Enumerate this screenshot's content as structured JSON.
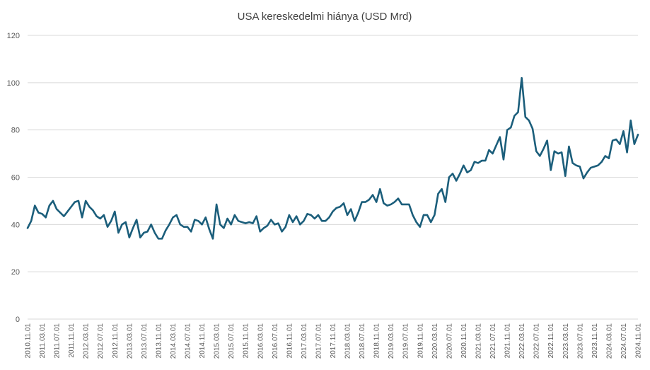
{
  "chart_data": {
    "type": "line",
    "title": "USA kereskedelmi hiánya (USD Mrd)",
    "xlabel": "",
    "ylabel": "",
    "ylim": [
      0,
      120
    ],
    "yticks": [
      0,
      20,
      40,
      60,
      80,
      100,
      120
    ],
    "grid": "horizontal",
    "legend": "none",
    "colors": {
      "line": "#1b5e7b",
      "grid": "#d9d9d9",
      "text": "#595959"
    },
    "x_tick_labels": [
      "2010.11.01",
      "2011.03.01",
      "2011.07.01",
      "2011.11.01",
      "2012.03.01",
      "2012.07.01",
      "2012.11.01",
      "2013.03.01",
      "2013.07.01",
      "2013.11.01",
      "2014.03.01",
      "2014.07.01",
      "2014.11.01",
      "2015.03.01",
      "2015.07.01",
      "2015.11.01",
      "2016.03.01",
      "2016.07.01",
      "2016.11.01",
      "2017.03.01",
      "2017.07.01",
      "2017.11.01",
      "2018.03.01",
      "2018.07.01",
      "2018.11.01",
      "2019.03.01",
      "2019.07.01",
      "2019.11.01",
      "2020.03.01",
      "2020.07.01",
      "2020.11.01",
      "2021.03.01",
      "2021.07.01",
      "2021.11.01",
      "2022.03.01",
      "2022.07.01",
      "2022.11.01",
      "2023.03.01",
      "2023.07.01",
      "2023.11.01",
      "2024.03.01",
      "2024.07.01",
      "2024.11.01"
    ],
    "x_start": "2010.11.01",
    "x_end": "2024.12.01",
    "series": [
      {
        "values": [
          38.5,
          41.5,
          48,
          45,
          44.5,
          43,
          48,
          50,
          46.5,
          45,
          43.5,
          45.5,
          47.5,
          49.5,
          50,
          43,
          50,
          47.5,
          46,
          43.5,
          42.5,
          44,
          39,
          41.5,
          45.5,
          36.5,
          40,
          41,
          34.5,
          38.5,
          42,
          34.5,
          36.5,
          37,
          40,
          36.5,
          34,
          34,
          37.5,
          40,
          43,
          44,
          40,
          39,
          39,
          37,
          42,
          41.5,
          40,
          43,
          38,
          34,
          48.5,
          40,
          38.5,
          42.5,
          40,
          44,
          41.5,
          41,
          40.5,
          41,
          40.5,
          43.5,
          37,
          38.5,
          39.5,
          42,
          40,
          40.5,
          37,
          39,
          44,
          41,
          43.5,
          40,
          41.5,
          44.5,
          44,
          42.5,
          44,
          41.5,
          41.5,
          43,
          45.5,
          47,
          47.5,
          49,
          44,
          46.5,
          41.5,
          45,
          49.5,
          49.5,
          50.5,
          52.5,
          49.5,
          55,
          49,
          48,
          48.5,
          49.5,
          51,
          48.5,
          48.5,
          48.5,
          44,
          41,
          39,
          44,
          44,
          41,
          44,
          53,
          55,
          49.5,
          60,
          61.5,
          58.5,
          61.5,
          65,
          62,
          63,
          66.5,
          66,
          67,
          67,
          71.5,
          70,
          73.5,
          77,
          67.5,
          80,
          81,
          86,
          87.5,
          102,
          85.5,
          84,
          80.5,
          71,
          69,
          72,
          75.5,
          63,
          71,
          70,
          70.5,
          60.5,
          73,
          66,
          65,
          64.5,
          59.5,
          62,
          64,
          64.5,
          65,
          66.5,
          69,
          68,
          75.5,
          76,
          74,
          79.5,
          70.5,
          84,
          74,
          78
        ]
      }
    ]
  }
}
